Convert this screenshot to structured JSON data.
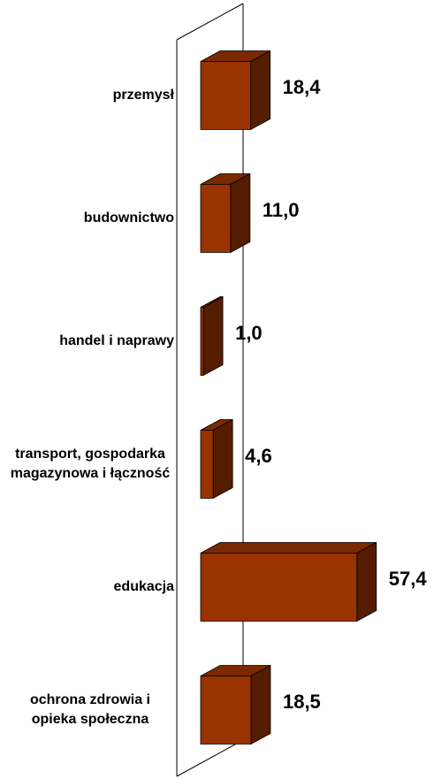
{
  "chart_data": {
    "type": "bar3d",
    "categories": [
      "przemysł",
      "budownictwo",
      "handel i naprawy",
      "transport, gospodarka magazynowa i łączność",
      "edukacja",
      "ochrona zdrowia i opieka społeczna"
    ],
    "values": [
      18.4,
      11.0,
      1.0,
      4.6,
      57.4,
      18.5
    ],
    "value_labels": [
      "18,4",
      "11,0",
      "1,0",
      "4,6",
      "57,4",
      "18,5"
    ],
    "color": "#993300"
  }
}
